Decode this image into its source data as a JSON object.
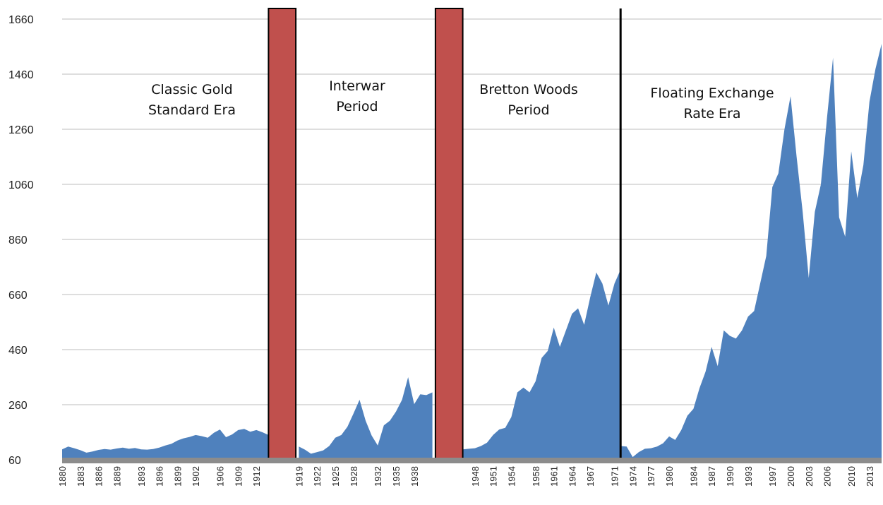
{
  "chart_data": {
    "type": "area",
    "title": "",
    "xlabel": "",
    "ylabel": "",
    "ylim": [
      60,
      1660
    ],
    "xlim": [
      1880,
      2015
    ],
    "yticks": [
      60,
      260,
      460,
      660,
      860,
      1060,
      1260,
      1460,
      1660
    ],
    "xticks": [
      1880,
      1883,
      1886,
      1889,
      1893,
      1896,
      1899,
      1902,
      1906,
      1909,
      1912,
      1919,
      1922,
      1925,
      1928,
      1932,
      1935,
      1938,
      1948,
      1951,
      1954,
      1958,
      1961,
      1964,
      1967,
      1971,
      1974,
      1977,
      1980,
      1984,
      1987,
      1990,
      1993,
      1997,
      2000,
      2003,
      2006,
      2010,
      2013
    ],
    "grid": true,
    "colors": {
      "area": "#4f81bd",
      "band": "#c0504d",
      "baseline": "#8c8c8c",
      "divider": "#000000"
    },
    "segments": [
      {
        "x": [
          1880,
          1881,
          1882,
          1883,
          1884,
          1885,
          1886,
          1887,
          1888,
          1889,
          1890,
          1891,
          1892,
          1893,
          1894,
          1895,
          1896,
          1897,
          1898,
          1899,
          1900,
          1901,
          1902,
          1903,
          1904,
          1905,
          1906,
          1907,
          1908,
          1909,
          1910,
          1911,
          1912,
          1913,
          1914
        ],
        "y": [
          98,
          108,
          102,
          95,
          86,
          90,
          96,
          99,
          97,
          101,
          104,
          100,
          103,
          98,
          97,
          99,
          104,
          112,
          118,
          130,
          138,
          143,
          150,
          146,
          140,
          158,
          170,
          142,
          152,
          168,
          172,
          162,
          168,
          160,
          150
        ]
      },
      {
        "x": [
          1919,
          1920,
          1921,
          1922,
          1923,
          1924,
          1925,
          1926,
          1927,
          1928,
          1929,
          1930,
          1931,
          1932,
          1933,
          1934,
          1935,
          1936,
          1937,
          1938,
          1939,
          1940,
          1941
        ],
        "y": [
          108,
          97,
          82,
          88,
          94,
          110,
          140,
          150,
          180,
          228,
          278,
          202,
          148,
          112,
          185,
          202,
          235,
          278,
          360,
          262,
          298,
          295,
          305
        ]
      },
      {
        "x": [
          1946,
          1947,
          1948,
          1949,
          1950,
          1951,
          1952,
          1953,
          1954,
          1955,
          1956,
          1957,
          1958,
          1959,
          1960,
          1961,
          1962,
          1963,
          1964,
          1965,
          1966,
          1967,
          1968,
          1969,
          1970,
          1971,
          1972
        ],
        "y": [
          98,
          100,
          102,
          110,
          122,
          150,
          170,
          176,
          215,
          305,
          322,
          305,
          345,
          430,
          455,
          540,
          470,
          530,
          590,
          610,
          550,
          650,
          740,
          700,
          620,
          700,
          750
        ]
      },
      {
        "x": [
          1972,
          1973,
          1974,
          1975,
          1976,
          1977,
          1978,
          1979,
          1980,
          1981,
          1982,
          1983,
          1984,
          1985,
          1986,
          1987,
          1988,
          1989,
          1990,
          1991,
          1992,
          1993,
          1994,
          1995,
          1996,
          1997,
          1998,
          1999,
          2000,
          2001,
          2002,
          2003,
          2004,
          2005,
          2006,
          2007,
          2008,
          2009,
          2010,
          2011,
          2012,
          2013,
          2014,
          2015
        ],
        "y": [
          110,
          108,
          70,
          88,
          100,
          102,
          108,
          120,
          145,
          132,
          168,
          220,
          245,
          320,
          380,
          470,
          400,
          530,
          510,
          500,
          530,
          580,
          600,
          700,
          800,
          1050,
          1100,
          1260,
          1380,
          1160,
          960,
          720,
          960,
          1060,
          1300,
          1520,
          940,
          870,
          1180,
          1010,
          1130,
          1360,
          1480,
          1570
        ]
      }
    ],
    "bands": [
      {
        "x0": 1914,
        "x1": 1918.5
      },
      {
        "x0": 1941.5,
        "x1": 1946
      }
    ],
    "dividers": [
      1972
    ],
    "annotations": [
      {
        "lines": [
          "Classic Gold",
          "Standard Era"
        ]
      },
      {
        "lines": [
          "Interwar",
          "Period"
        ]
      },
      {
        "lines": [
          "Bretton Woods",
          "Period"
        ]
      },
      {
        "lines": [
          "Floating Exchange",
          "Rate Era"
        ]
      }
    ]
  }
}
